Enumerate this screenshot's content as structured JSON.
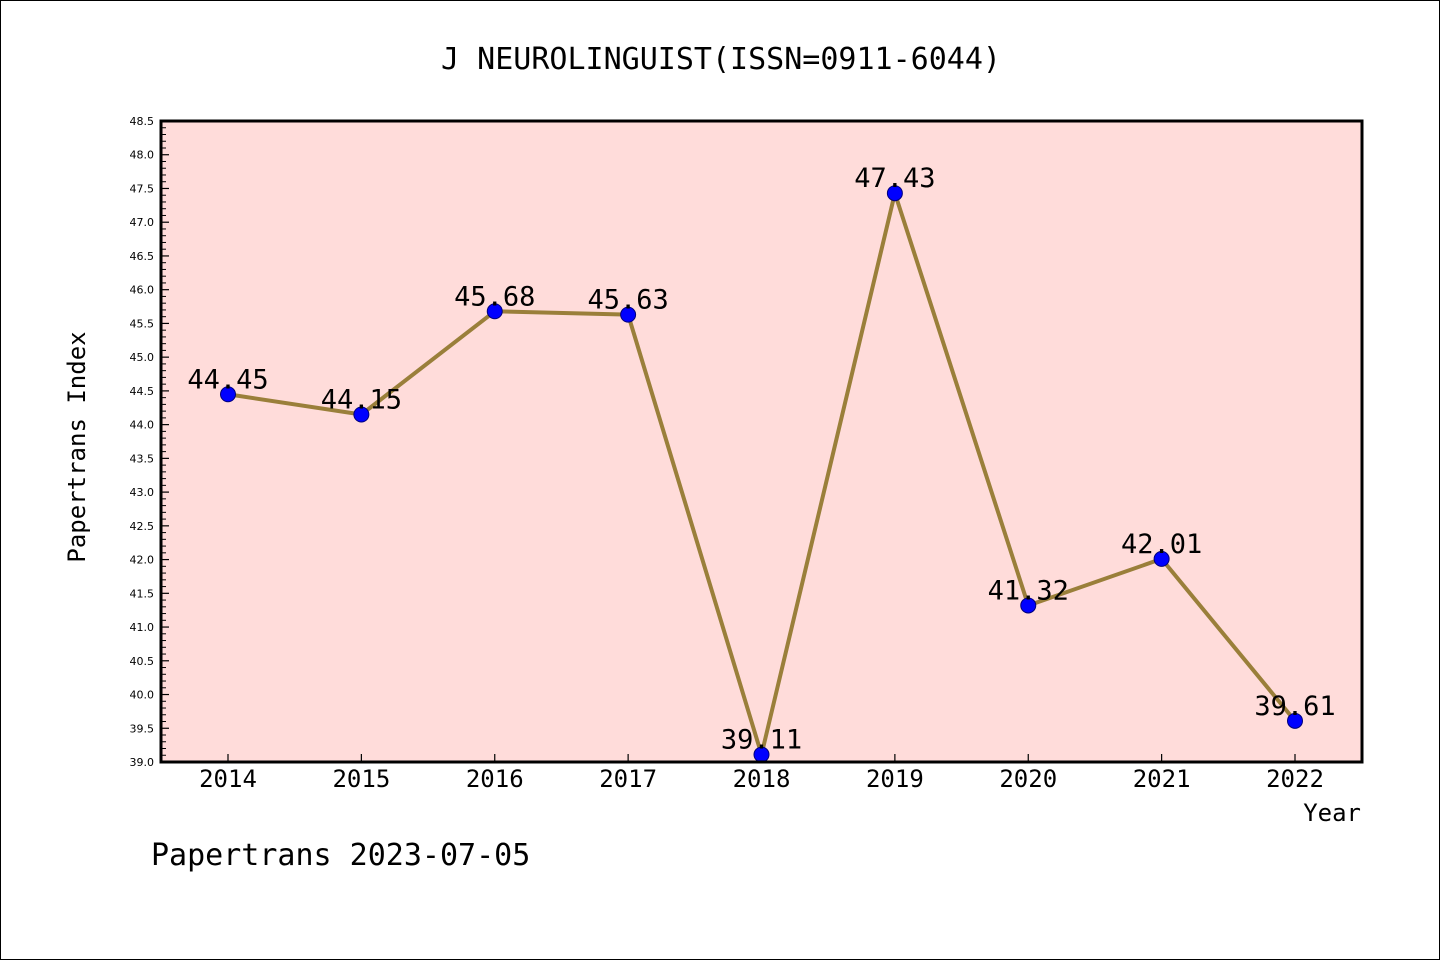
{
  "chart_data": {
    "type": "line",
    "title": "J NEUROLINGUIST(ISSN=0911-6044)",
    "xlabel": "Year",
    "ylabel": "Papertrans Index",
    "footer": "Papertrans 2023-07-05",
    "categories": [
      "2014",
      "2015",
      "2016",
      "2017",
      "2018",
      "2019",
      "2020",
      "2021",
      "2022"
    ],
    "values": [
      44.45,
      44.15,
      45.68,
      45.63,
      39.11,
      47.43,
      41.32,
      42.01,
      39.61
    ],
    "point_labels": [
      "44.45",
      "44.15",
      "45.68",
      "45.63",
      "39.11",
      "47.43",
      "41.32",
      "42.01",
      "39.61"
    ],
    "ylim": [
      39.0,
      48.5
    ],
    "ytick_step": 0.5,
    "ytick_labels": [
      "39.0",
      "39.5",
      "40.0",
      "40.5",
      "41.0",
      "41.5",
      "42.0",
      "42.5",
      "43.0",
      "43.5",
      "44.0",
      "44.5",
      "45.0",
      "45.5",
      "46.0",
      "46.5",
      "47.0",
      "47.5",
      "48.0",
      "48.5"
    ],
    "grid": false,
    "colors": {
      "plot_background": "#ffdcda",
      "line": "#9a7f3a",
      "marker": "#0000ff",
      "marker_edge": "#00007a"
    }
  }
}
